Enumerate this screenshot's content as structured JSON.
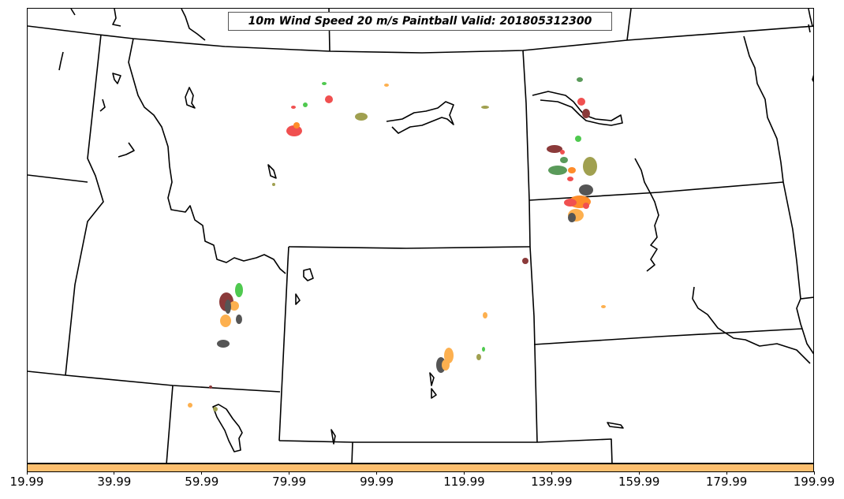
{
  "title": "10m Wind Speed 20 m/s Paintball Valid: 201805312300",
  "colorbar": {
    "color": "#fdbf6f",
    "tick_labels": [
      "19.99",
      "39.99",
      "59.99",
      "79.99",
      "99.99",
      "119.99",
      "139.99",
      "159.99",
      "179.99",
      "199.99"
    ]
  },
  "colors": {
    "red": "#f05050",
    "green": "#4fc94f",
    "dark_green": "#5a9a5a",
    "olive": "#a0a050",
    "orange": "#ff8c2a",
    "light_orange": "#fdb04f",
    "dark_red": "#8b3a3a",
    "dark_gray": "#555555"
  }
}
